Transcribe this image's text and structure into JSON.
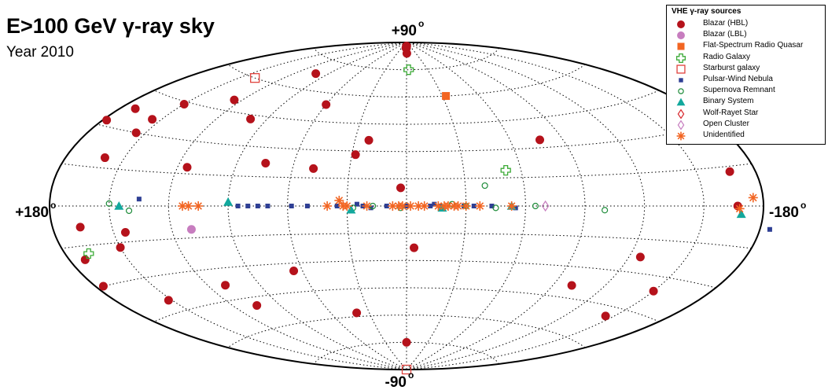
{
  "title": "E>100 GeV γ-ray sky",
  "subtitle": "Year 2010",
  "axis_labels": {
    "top": "+90",
    "bottom": "-90",
    "left": "+180",
    "right": "-180",
    "degree": "o"
  },
  "legend": {
    "title": "VHE γ-ray sources",
    "items": [
      {
        "label": "Blazar (HBL)",
        "symbol": "circle-filled",
        "color": "#b5121b"
      },
      {
        "label": "Blazar (LBL)",
        "symbol": "circle-filled",
        "color": "#c77dbf"
      },
      {
        "label": "Flat-Spectrum Radio Quasar",
        "symbol": "square-filled",
        "color": "#f26522"
      },
      {
        "label": "Radio Galaxy",
        "symbol": "cross-open",
        "color": "#3aa935"
      },
      {
        "label": "Starburst galaxy",
        "symbol": "square-open",
        "color": "#e0413c"
      },
      {
        "label": "Pulsar-Wind Nebula",
        "symbol": "square-small",
        "color": "#2e3f94"
      },
      {
        "label": "Supernova Remnant",
        "symbol": "circle-open",
        "color": "#1e8c3a"
      },
      {
        "label": "Binary System",
        "symbol": "triangle-filled",
        "color": "#12a89d"
      },
      {
        "label": "Wolf-Rayet Star",
        "symbol": "diamond-open",
        "color": "#d7262b"
      },
      {
        "label": "Open Cluster",
        "symbol": "diamond-open",
        "color": "#c77dbf"
      },
      {
        "label": "Unidentified",
        "symbol": "asterisk",
        "color": "#f26522"
      }
    ]
  },
  "chart_data": {
    "type": "scatter",
    "projection": "aitoff",
    "coordinates": "galactic",
    "xlim": [
      180,
      -180
    ],
    "ylim": [
      -90,
      90
    ],
    "grid": true,
    "legend_position": "top-right",
    "series": [
      {
        "name": "Blazar (HBL)",
        "points": [
          [
            -2,
            88
          ],
          [
            0,
            87
          ],
          [
            2,
            88
          ],
          [
            4,
            87
          ],
          [
            -1,
            84
          ],
          [
            102,
            68
          ],
          [
            60,
            54
          ],
          [
            125,
            50
          ],
          [
            100,
            43
          ],
          [
            150,
            44
          ],
          [
            155,
            36
          ],
          [
            155,
            30
          ],
          [
            172,
            38
          ],
          [
            178,
            32
          ],
          [
            160,
            19
          ],
          [
            115,
            18
          ],
          [
            22,
            36
          ],
          [
            28,
            28
          ],
          [
            49,
            20
          ],
          [
            75,
            22
          ],
          [
            3,
            10
          ],
          [
            -77,
            34
          ],
          [
            -167,
            13
          ],
          [
            -167,
            0
          ],
          [
            166,
            -8
          ],
          [
            144,
            -11
          ],
          [
            150,
            -17
          ],
          [
            172,
            -20
          ],
          [
            176,
            -30
          ],
          [
            152,
            -40
          ],
          [
            110,
            -38
          ],
          [
            65,
            -34
          ],
          [
            105,
            -49
          ],
          [
            40,
            -58
          ],
          [
            -4,
            -23
          ],
          [
            -126,
            -23
          ],
          [
            -101,
            -39
          ],
          [
            -150,
            -36
          ],
          [
            -145,
            -49
          ],
          [
            0,
            -75
          ]
        ]
      },
      {
        "name": "Blazar (LBL)",
        "points": [
          [
            110,
            -11
          ]
        ]
      },
      {
        "name": "Flat-Spectrum Radio Quasar",
        "points": [
          [
            -33,
            60
          ]
        ]
      },
      {
        "name": "Radio Galaxy",
        "points": [
          [
            -3,
            75
          ],
          [
            -52,
            19
          ],
          [
            168,
            -18
          ]
        ]
      },
      {
        "name": "Starburst galaxy",
        "points": [
          [
            140,
            60
          ],
          [
            0,
            -90
          ]
        ]
      },
      {
        "name": "Pulsar-Wind Nebula",
        "points": [
          [
            135,
            3
          ],
          [
            85,
            0
          ],
          [
            80,
            0
          ],
          [
            75,
            0
          ],
          [
            70,
            0
          ],
          [
            58,
            0
          ],
          [
            50,
            0
          ],
          [
            35,
            0
          ],
          [
            25,
            1
          ],
          [
            22,
            0
          ],
          [
            18,
            -1
          ],
          [
            10,
            0
          ],
          [
            0,
            0
          ],
          [
            -12,
            0
          ],
          [
            -17,
            0
          ],
          [
            -29,
            0
          ],
          [
            -34,
            0
          ],
          [
            -43,
            0
          ],
          [
            -55,
            -1
          ],
          [
            -185,
            -8
          ],
          [
            -14,
            1
          ]
        ]
      },
      {
        "name": "Supernova Remnant",
        "points": [
          [
            150,
            1
          ],
          [
            140,
            -2
          ],
          [
            -40,
            11
          ],
          [
            -30,
            0
          ],
          [
            -45,
            -1
          ],
          [
            -65,
            0
          ],
          [
            -100,
            -2
          ],
          [
            27,
            -1
          ],
          [
            17,
            0
          ],
          [
            -23,
            1
          ],
          [
            3,
            -1
          ]
        ]
      },
      {
        "name": "Binary System",
        "points": [
          [
            145,
            0
          ],
          [
            90,
            2
          ],
          [
            28,
            -2
          ],
          [
            -18,
            -1
          ],
          [
            -53,
            0
          ],
          [
            -169,
            -3
          ]
        ]
      },
      {
        "name": "Wolf-Rayet Star",
        "points": []
      },
      {
        "name": "Open Cluster",
        "points": [
          [
            -70,
            0
          ]
        ]
      },
      {
        "name": "Unidentified",
        "points": [
          [
            113,
            0
          ],
          [
            110,
            0
          ],
          [
            105,
            0
          ],
          [
            40,
            0
          ],
          [
            32,
            0
          ],
          [
            34,
            3
          ],
          [
            30,
            0
          ],
          [
            20,
            0
          ],
          [
            7,
            0
          ],
          [
            4,
            0
          ],
          [
            2,
            0
          ],
          [
            -2,
            0
          ],
          [
            -6,
            0
          ],
          [
            -9,
            0
          ],
          [
            -19,
            0
          ],
          [
            -21,
            0
          ],
          [
            -24,
            0
          ],
          [
            -26,
            0
          ],
          [
            -30,
            0
          ],
          [
            -37,
            0
          ],
          [
            -53,
            0
          ],
          [
            -168,
            -1
          ],
          [
            -175,
            3
          ],
          [
            -16,
            0
          ]
        ]
      }
    ]
  }
}
